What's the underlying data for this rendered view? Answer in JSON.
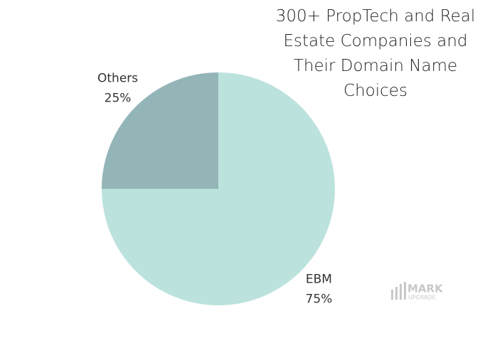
{
  "chart_data": {
    "type": "pie",
    "title": "300+ PropTech and Real Estate Companies and Their Domain Name Choices",
    "categories": [
      "EBM",
      "Others"
    ],
    "values": [
      75,
      25
    ],
    "value_labels": [
      "75%",
      "25%"
    ],
    "colors": [
      "#bce2dd",
      "#94b5b8"
    ],
    "logo": {
      "top": "MARK",
      "bottom": "UPGRADE"
    }
  }
}
